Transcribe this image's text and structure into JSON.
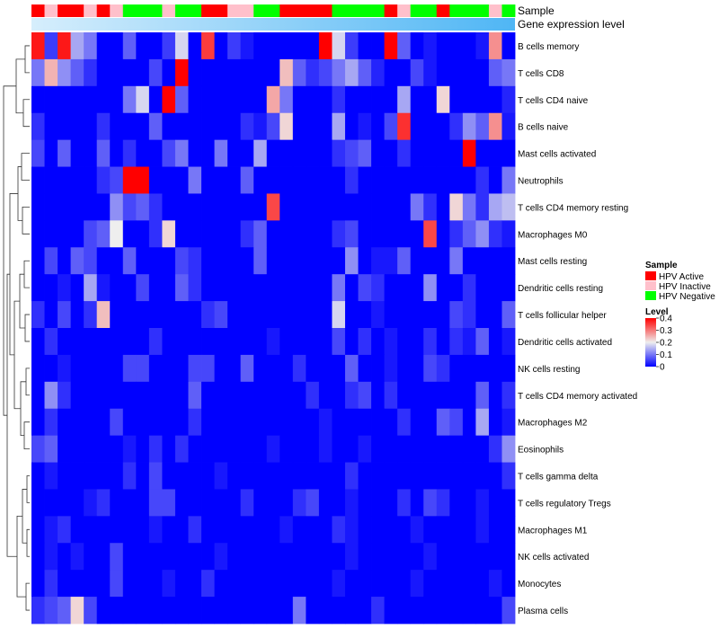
{
  "chart_data": {
    "type": "heatmap",
    "annotation_labels": [
      "Sample",
      "Gene expression level"
    ],
    "sample_annotation": [
      "Active",
      "Inactive",
      "Active",
      "Active",
      "Inactive",
      "Active",
      "Inactive",
      "Negative",
      "Negative",
      "Negative",
      "Inactive",
      "Negative",
      "Negative",
      "Active",
      "Active",
      "Inactive",
      "Inactive",
      "Negative",
      "Negative",
      "Active",
      "Active",
      "Active",
      "Active",
      "Negative",
      "Negative",
      "Negative",
      "Negative",
      "Active",
      "Inactive",
      "Negative",
      "Negative",
      "Active",
      "Negative",
      "Negative",
      "Negative",
      "Inactive",
      "Negative"
    ],
    "rows": [
      {
        "label": "B cells memory",
        "values": [
          0.38,
          0.05,
          0.38,
          0.14,
          0.1,
          0.0,
          0.0,
          0.08,
          0.0,
          0.0,
          0.05,
          0.18,
          0.0,
          0.35,
          0.0,
          0.05,
          0.02,
          0.0,
          0.0,
          0.0,
          0.0,
          0.0,
          0.4,
          0.18,
          0.05,
          0.0,
          0.0,
          0.4,
          0.08,
          0.0,
          0.02,
          0.0,
          0.0,
          0.0,
          0.02,
          0.28,
          0.0
        ]
      },
      {
        "label": "T cells CD8",
        "values": [
          0.1,
          0.25,
          0.12,
          0.08,
          0.04,
          0.0,
          0.0,
          0.0,
          0.0,
          0.06,
          0.0,
          0.4,
          0.0,
          0.0,
          0.0,
          0.0,
          0.0,
          0.0,
          0.0,
          0.24,
          0.08,
          0.04,
          0.06,
          0.1,
          0.14,
          0.08,
          0.03,
          0.0,
          0.0,
          0.06,
          0.02,
          0.0,
          0.0,
          0.0,
          0.0,
          0.08,
          0.1
        ]
      },
      {
        "label": "T cells CD4 naive",
        "values": [
          0.0,
          0.0,
          0.0,
          0.0,
          0.0,
          0.0,
          0.0,
          0.1,
          0.18,
          0.0,
          0.4,
          0.08,
          0.0,
          0.0,
          0.0,
          0.0,
          0.0,
          0.0,
          0.26,
          0.1,
          0.0,
          0.0,
          0.0,
          0.04,
          0.0,
          0.0,
          0.0,
          0.0,
          0.14,
          0.0,
          0.0,
          0.22,
          0.0,
          0.0,
          0.0,
          0.0,
          0.03
        ]
      },
      {
        "label": "B cells naive",
        "values": [
          0.04,
          0.0,
          0.0,
          0.0,
          0.0,
          0.04,
          0.0,
          0.0,
          0.0,
          0.08,
          0.0,
          0.0,
          0.0,
          0.0,
          0.0,
          0.0,
          0.04,
          0.02,
          0.06,
          0.22,
          0.0,
          0.0,
          0.0,
          0.14,
          0.0,
          0.02,
          0.0,
          0.06,
          0.36,
          0.0,
          0.0,
          0.0,
          0.04,
          0.12,
          0.08,
          0.28,
          0.02
        ]
      },
      {
        "label": "Mast cells activated",
        "values": [
          0.06,
          0.0,
          0.08,
          0.0,
          0.0,
          0.08,
          0.0,
          0.04,
          0.0,
          0.0,
          0.06,
          0.1,
          0.0,
          0.0,
          0.1,
          0.0,
          0.0,
          0.14,
          0.0,
          0.0,
          0.0,
          0.0,
          0.0,
          0.04,
          0.06,
          0.08,
          0.0,
          0.0,
          0.04,
          0.0,
          0.0,
          0.0,
          0.0,
          0.4,
          0.0,
          0.0,
          0.0
        ]
      },
      {
        "label": "Neutrophils",
        "values": [
          0.0,
          0.0,
          0.0,
          0.0,
          0.0,
          0.04,
          0.06,
          0.4,
          0.4,
          0.0,
          0.0,
          0.0,
          0.1,
          0.0,
          0.0,
          0.0,
          0.08,
          0.0,
          0.0,
          0.0,
          0.0,
          0.0,
          0.0,
          0.0,
          0.04,
          0.0,
          0.0,
          0.0,
          0.0,
          0.0,
          0.0,
          0.0,
          0.0,
          0.0,
          0.04,
          0.0,
          0.1
        ]
      },
      {
        "label": "T cells CD4 memory resting",
        "values": [
          0.0,
          0.0,
          0.0,
          0.0,
          0.0,
          0.0,
          0.12,
          0.06,
          0.08,
          0.04,
          0.0,
          0.0,
          0.0,
          0.0,
          0.0,
          0.0,
          0.0,
          0.0,
          0.34,
          0.0,
          0.0,
          0.0,
          0.0,
          0.0,
          0.0,
          0.0,
          0.0,
          0.0,
          0.0,
          0.1,
          0.04,
          0.0,
          0.22,
          0.1,
          0.04,
          0.14,
          0.16
        ]
      },
      {
        "label": "Macrophages M0",
        "values": [
          0.0,
          0.0,
          0.0,
          0.0,
          0.06,
          0.08,
          0.2,
          0.0,
          0.0,
          0.04,
          0.22,
          0.0,
          0.0,
          0.0,
          0.0,
          0.0,
          0.04,
          0.08,
          0.0,
          0.0,
          0.0,
          0.0,
          0.0,
          0.04,
          0.06,
          0.0,
          0.0,
          0.0,
          0.0,
          0.0,
          0.34,
          0.0,
          0.04,
          0.08,
          0.12,
          0.04,
          0.02
        ]
      },
      {
        "label": "Mast cells resting",
        "values": [
          0.0,
          0.06,
          0.0,
          0.08,
          0.06,
          0.0,
          0.0,
          0.08,
          0.0,
          0.0,
          0.0,
          0.06,
          0.04,
          0.0,
          0.0,
          0.0,
          0.0,
          0.08,
          0.0,
          0.0,
          0.0,
          0.0,
          0.0,
          0.0,
          0.12,
          0.0,
          0.02,
          0.02,
          0.08,
          0.0,
          0.0,
          0.0,
          0.1,
          0.0,
          0.0,
          0.0,
          0.0
        ]
      },
      {
        "label": "Dendritic cells resting",
        "values": [
          0.0,
          0.0,
          0.02,
          0.0,
          0.14,
          0.02,
          0.0,
          0.0,
          0.06,
          0.0,
          0.0,
          0.08,
          0.04,
          0.0,
          0.0,
          0.0,
          0.0,
          0.0,
          0.0,
          0.0,
          0.0,
          0.0,
          0.0,
          0.1,
          0.0,
          0.06,
          0.04,
          0.0,
          0.0,
          0.0,
          0.12,
          0.0,
          0.0,
          0.04,
          0.0,
          0.0,
          0.0
        ]
      },
      {
        "label": "T cells follicular helper",
        "values": [
          0.04,
          0.0,
          0.06,
          0.0,
          0.04,
          0.24,
          0.0,
          0.0,
          0.0,
          0.0,
          0.0,
          0.0,
          0.0,
          0.04,
          0.06,
          0.0,
          0.0,
          0.0,
          0.0,
          0.0,
          0.0,
          0.0,
          0.0,
          0.18,
          0.0,
          0.0,
          0.02,
          0.0,
          0.0,
          0.0,
          0.0,
          0.0,
          0.06,
          0.04,
          0.0,
          0.0,
          0.08
        ]
      },
      {
        "label": "Dendritic cells activated",
        "values": [
          0.0,
          0.04,
          0.0,
          0.0,
          0.0,
          0.0,
          0.0,
          0.0,
          0.0,
          0.04,
          0.0,
          0.0,
          0.0,
          0.0,
          0.0,
          0.0,
          0.0,
          0.0,
          0.02,
          0.0,
          0.0,
          0.0,
          0.0,
          0.06,
          0.0,
          0.04,
          0.0,
          0.02,
          0.0,
          0.0,
          0.04,
          0.0,
          0.04,
          0.02,
          0.08,
          0.0,
          0.02
        ]
      },
      {
        "label": "NK cells resting",
        "values": [
          0.0,
          0.0,
          0.02,
          0.0,
          0.0,
          0.0,
          0.0,
          0.06,
          0.06,
          0.0,
          0.0,
          0.0,
          0.06,
          0.06,
          0.0,
          0.0,
          0.08,
          0.0,
          0.0,
          0.0,
          0.04,
          0.0,
          0.0,
          0.0,
          0.08,
          0.0,
          0.0,
          0.02,
          0.0,
          0.0,
          0.06,
          0.04,
          0.0,
          0.0,
          0.0,
          0.0,
          0.0
        ]
      },
      {
        "label": "T cells CD4 memory activated",
        "values": [
          0.0,
          0.12,
          0.04,
          0.0,
          0.0,
          0.0,
          0.0,
          0.0,
          0.0,
          0.0,
          0.0,
          0.0,
          0.08,
          0.0,
          0.0,
          0.0,
          0.0,
          0.0,
          0.0,
          0.0,
          0.0,
          0.04,
          0.0,
          0.0,
          0.04,
          0.06,
          0.0,
          0.04,
          0.0,
          0.0,
          0.0,
          0.0,
          0.0,
          0.0,
          0.08,
          0.0,
          0.04
        ]
      },
      {
        "label": "Macrophages M2",
        "values": [
          0.0,
          0.04,
          0.0,
          0.0,
          0.0,
          0.0,
          0.06,
          0.0,
          0.0,
          0.0,
          0.0,
          0.0,
          0.04,
          0.0,
          0.0,
          0.0,
          0.0,
          0.0,
          0.0,
          0.0,
          0.0,
          0.0,
          0.02,
          0.0,
          0.0,
          0.0,
          0.0,
          0.0,
          0.04,
          0.0,
          0.0,
          0.08,
          0.06,
          0.0,
          0.14,
          0.0,
          0.02
        ]
      },
      {
        "label": "Eosinophils",
        "values": [
          0.06,
          0.08,
          0.0,
          0.0,
          0.0,
          0.0,
          0.0,
          0.02,
          0.0,
          0.04,
          0.0,
          0.04,
          0.0,
          0.0,
          0.0,
          0.0,
          0.0,
          0.0,
          0.02,
          0.0,
          0.0,
          0.0,
          0.02,
          0.0,
          0.0,
          0.02,
          0.0,
          0.0,
          0.0,
          0.0,
          0.0,
          0.0,
          0.0,
          0.0,
          0.0,
          0.04,
          0.12
        ]
      },
      {
        "label": "T cells gamma delta",
        "values": [
          0.0,
          0.02,
          0.0,
          0.0,
          0.0,
          0.0,
          0.0,
          0.04,
          0.0,
          0.06,
          0.0,
          0.0,
          0.0,
          0.0,
          0.02,
          0.0,
          0.0,
          0.0,
          0.0,
          0.0,
          0.0,
          0.0,
          0.0,
          0.0,
          0.04,
          0.0,
          0.0,
          0.0,
          0.0,
          0.0,
          0.0,
          0.0,
          0.0,
          0.0,
          0.0,
          0.0,
          0.04
        ]
      },
      {
        "label": "T cells regulatory  Tregs",
        "values": [
          0.0,
          0.0,
          0.0,
          0.0,
          0.02,
          0.04,
          0.0,
          0.0,
          0.0,
          0.06,
          0.06,
          0.0,
          0.0,
          0.0,
          0.0,
          0.0,
          0.04,
          0.0,
          0.0,
          0.0,
          0.04,
          0.06,
          0.0,
          0.0,
          0.02,
          0.0,
          0.0,
          0.0,
          0.04,
          0.0,
          0.06,
          0.04,
          0.0,
          0.0,
          0.02,
          0.0,
          0.0
        ]
      },
      {
        "label": "Macrophages M1",
        "values": [
          0.0,
          0.02,
          0.04,
          0.0,
          0.0,
          0.0,
          0.0,
          0.0,
          0.0,
          0.02,
          0.0,
          0.0,
          0.04,
          0.0,
          0.0,
          0.0,
          0.0,
          0.0,
          0.0,
          0.02,
          0.0,
          0.0,
          0.0,
          0.04,
          0.02,
          0.0,
          0.0,
          0.0,
          0.0,
          0.02,
          0.0,
          0.0,
          0.0,
          0.0,
          0.02,
          0.0,
          0.0
        ]
      },
      {
        "label": "NK cells activated",
        "values": [
          0.0,
          0.02,
          0.0,
          0.02,
          0.0,
          0.0,
          0.06,
          0.0,
          0.0,
          0.0,
          0.0,
          0.0,
          0.0,
          0.0,
          0.02,
          0.0,
          0.0,
          0.0,
          0.0,
          0.0,
          0.0,
          0.0,
          0.0,
          0.0,
          0.02,
          0.0,
          0.0,
          0.0,
          0.0,
          0.0,
          0.02,
          0.0,
          0.0,
          0.0,
          0.0,
          0.0,
          0.0
        ]
      },
      {
        "label": "Monocytes",
        "values": [
          0.0,
          0.04,
          0.0,
          0.0,
          0.0,
          0.0,
          0.06,
          0.0,
          0.0,
          0.0,
          0.02,
          0.0,
          0.0,
          0.04,
          0.0,
          0.0,
          0.0,
          0.0,
          0.0,
          0.0,
          0.0,
          0.0,
          0.0,
          0.02,
          0.0,
          0.0,
          0.0,
          0.0,
          0.0,
          0.02,
          0.0,
          0.0,
          0.0,
          0.0,
          0.0,
          0.02,
          0.0
        ]
      },
      {
        "label": "Plasma cells",
        "values": [
          0.04,
          0.06,
          0.08,
          0.22,
          0.06,
          0.0,
          0.0,
          0.0,
          0.0,
          0.0,
          0.0,
          0.0,
          0.0,
          0.0,
          0.0,
          0.0,
          0.0,
          0.0,
          0.0,
          0.0,
          0.1,
          0.0,
          0.0,
          0.0,
          0.0,
          0.0,
          0.04,
          0.0,
          0.0,
          0.0,
          0.0,
          0.0,
          0.0,
          0.0,
          0.0,
          0.0,
          0.06
        ]
      }
    ],
    "color_scale": {
      "min": 0,
      "max": 0.4,
      "low": "#0000ff",
      "mid": "#eeeeee",
      "high": "#ff0000"
    },
    "legend": {
      "sample_title": "Sample",
      "sample_items": [
        {
          "key": "Active",
          "label": "HPV Active",
          "color": "#ff0000"
        },
        {
          "key": "Inactive",
          "label": "HPV Inactive",
          "color": "#ffc0cb"
        },
        {
          "key": "Negative",
          "label": "HPV Negative",
          "color": "#00ff00"
        }
      ],
      "level_title": "Level",
      "level_ticks": [
        "0.4",
        "0.3",
        "0.2",
        "0.1",
        "0"
      ],
      "level_tick_values": [
        0.4,
        0.3,
        0.2,
        0.1,
        0
      ],
      "placement": "right"
    },
    "expression_bar_colors": [
      "#d6eefc",
      "#4fb6f5"
    ],
    "dendrogram": "rows-left"
  }
}
